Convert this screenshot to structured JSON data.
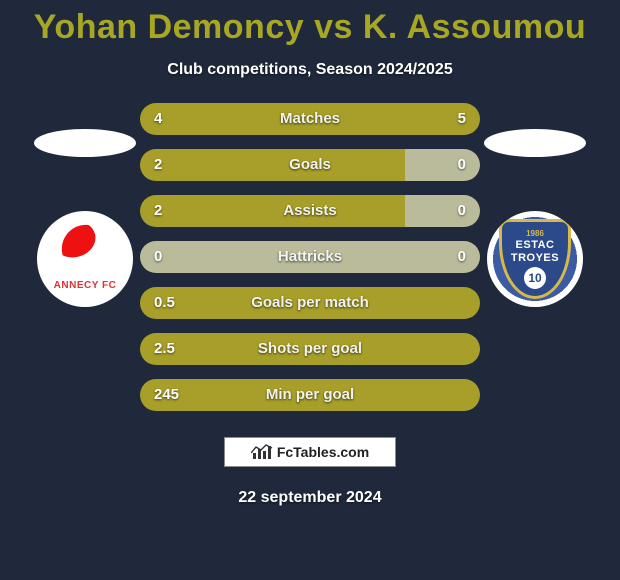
{
  "title": "Yohan Demoncy vs K. Assoumou",
  "subtitle": "Club competitions, Season 2024/2025",
  "date": "22 september 2024",
  "footer_brand": "FcTables.com",
  "colors": {
    "background": "#1f293b",
    "title": "#a7a723",
    "bar_left": "#a79f2a",
    "bar_right": "#a79f2a",
    "bar_track": "rgba(0,0,0,0.15)",
    "text": "#ffffff"
  },
  "players": {
    "left": {
      "name": "Yohan Demoncy",
      "club": "ANNECY FC"
    },
    "right": {
      "name": "K. Assoumou",
      "club": "ESTAC TROYES",
      "club_year": "1986",
      "club_num": "10"
    }
  },
  "stats": [
    {
      "label": "Matches",
      "left_val": "4",
      "right_val": "5",
      "left_pct": 44,
      "right_pct": 56,
      "left_color": "#a79f2a",
      "right_color": "#a79f2a"
    },
    {
      "label": "Goals",
      "left_val": "2",
      "right_val": "0",
      "left_pct": 78,
      "right_pct": 22,
      "left_color": "#a79f2a",
      "right_color": "#b9bb9a"
    },
    {
      "label": "Assists",
      "left_val": "2",
      "right_val": "0",
      "left_pct": 78,
      "right_pct": 22,
      "left_color": "#a79f2a",
      "right_color": "#b9bb9a"
    },
    {
      "label": "Hattricks",
      "left_val": "0",
      "right_val": "0",
      "left_pct": 50,
      "right_pct": 50,
      "left_color": "#b9bb9a",
      "right_color": "#b9bb9a"
    },
    {
      "label": "Goals per match",
      "left_val": "0.5",
      "right_val": "",
      "left_pct": 100,
      "right_pct": 0,
      "left_color": "#a79f2a",
      "right_color": "#a79f2a"
    },
    {
      "label": "Shots per goal",
      "left_val": "2.5",
      "right_val": "",
      "left_pct": 100,
      "right_pct": 0,
      "left_color": "#a79f2a",
      "right_color": "#a79f2a"
    },
    {
      "label": "Min per goal",
      "left_val": "245",
      "right_val": "",
      "left_pct": 100,
      "right_pct": 0,
      "left_color": "#a79f2a",
      "right_color": "#a79f2a"
    }
  ]
}
